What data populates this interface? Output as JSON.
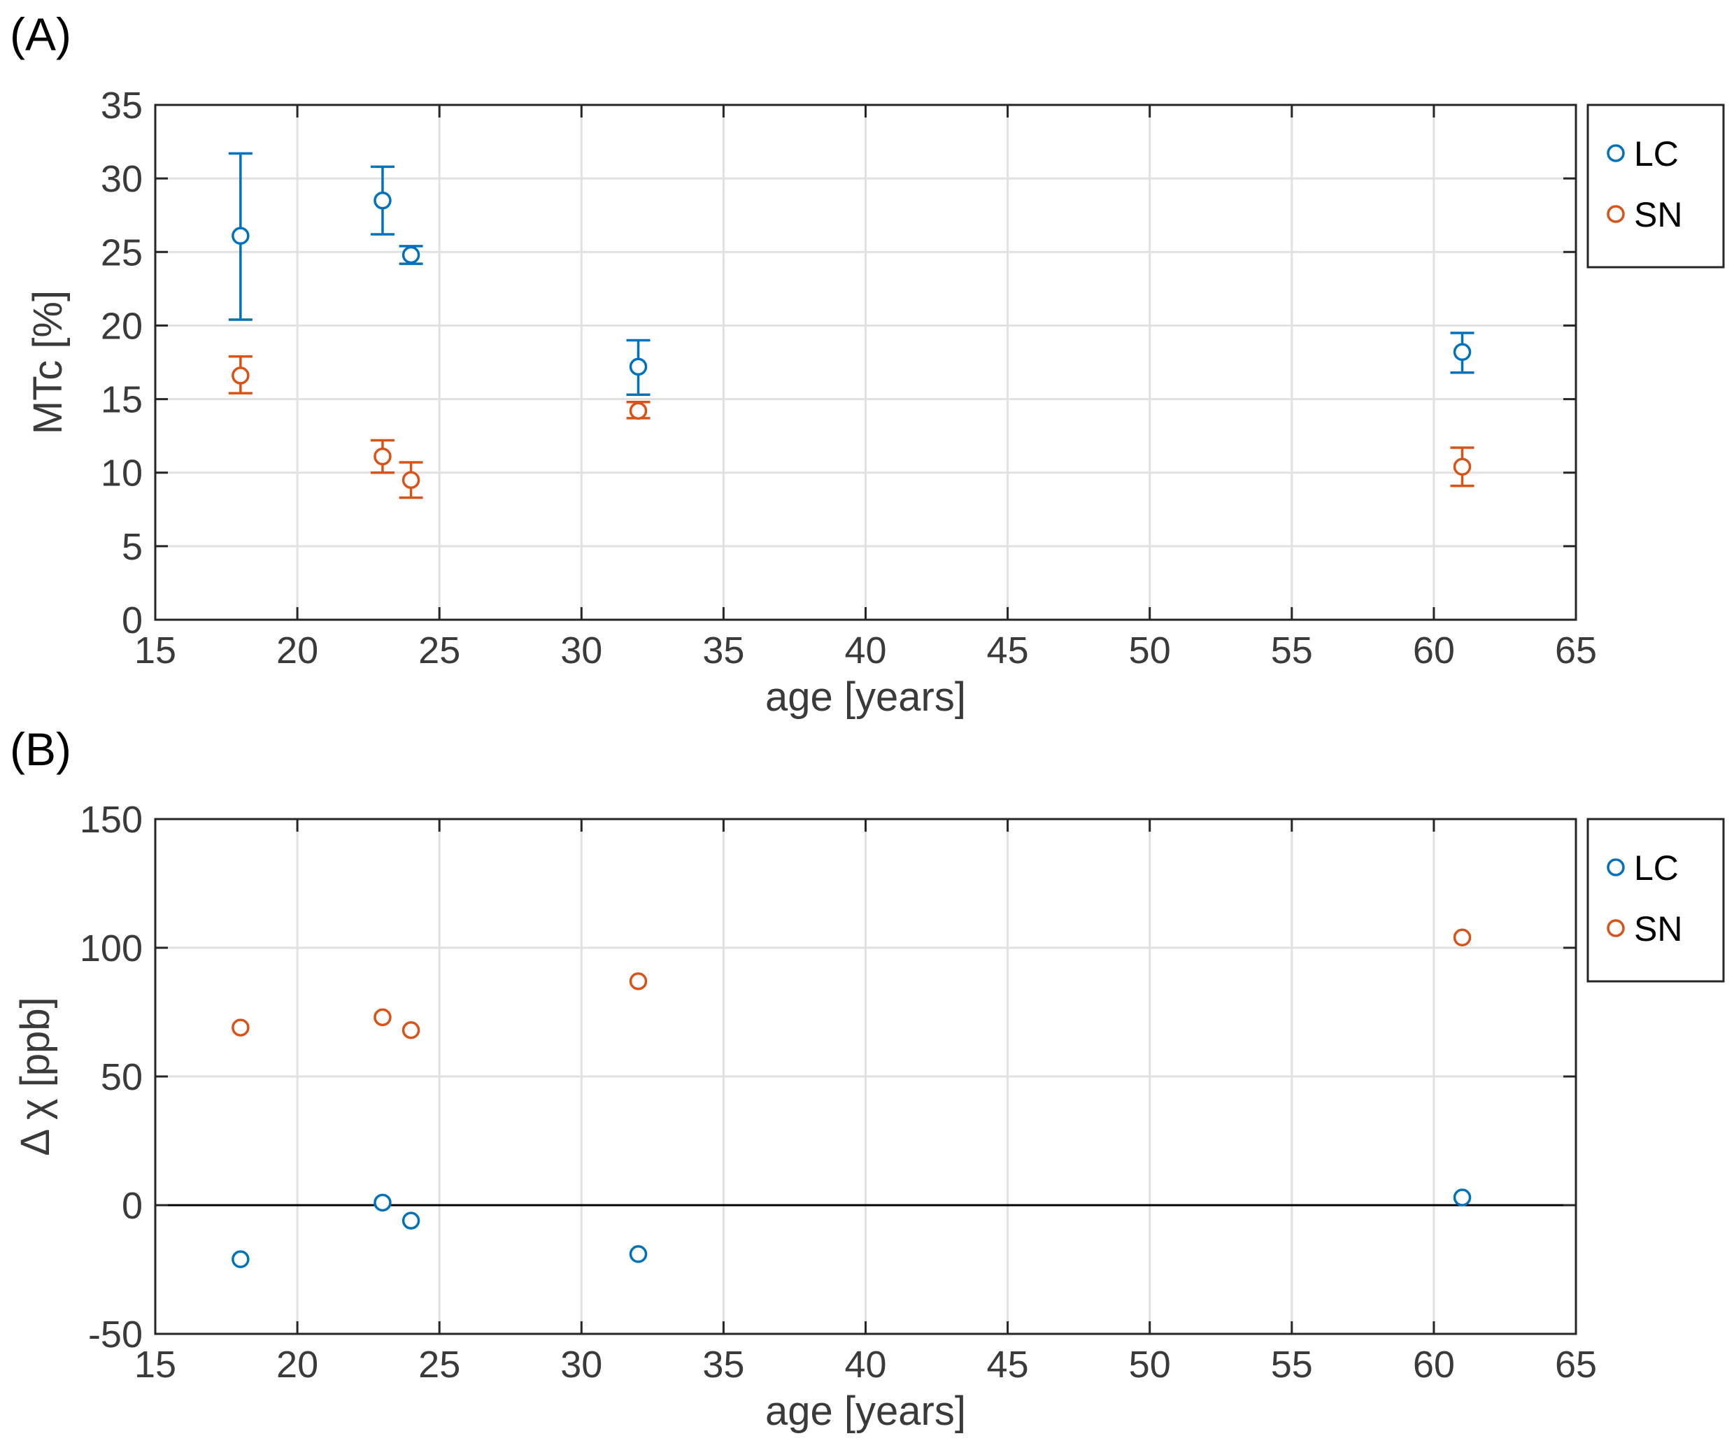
{
  "colors": {
    "lc": "#0072BD",
    "sn": "#D95319",
    "grid": "#e1e1e1",
    "axis": "#262626",
    "zero_line": "#000000"
  },
  "chart_data": [
    {
      "panel_label": "(A)",
      "type": "scatter",
      "error_bars": true,
      "xlabel": "age [years]",
      "ylabel": "MTc [%]",
      "xlim": [
        15,
        65
      ],
      "ylim": [
        0,
        35
      ],
      "x_ticks": [
        "15",
        "20",
        "25",
        "30",
        "35",
        "40",
        "45",
        "50",
        "55",
        "60",
        "65"
      ],
      "y_ticks": [
        "0",
        "5",
        "10",
        "15",
        "20",
        "25",
        "30",
        "35"
      ],
      "grid": true,
      "legend_position": "outside-right-top",
      "series": [
        {
          "name": "LC",
          "color": "#0072BD",
          "points": [
            {
              "x": 18,
              "y": 26.1,
              "low": 20.4,
              "high": 31.7
            },
            {
              "x": 23,
              "y": 28.5,
              "low": 26.2,
              "high": 30.8
            },
            {
              "x": 24,
              "y": 24.8,
              "low": 24.2,
              "high": 25.4
            },
            {
              "x": 32,
              "y": 17.2,
              "low": 15.3,
              "high": 19.0
            },
            {
              "x": 61,
              "y": 18.2,
              "low": 16.8,
              "high": 19.5
            }
          ]
        },
        {
          "name": "SN",
          "color": "#D95319",
          "points": [
            {
              "x": 18,
              "y": 16.6,
              "low": 15.4,
              "high": 17.9
            },
            {
              "x": 23,
              "y": 11.1,
              "low": 10.0,
              "high": 12.2
            },
            {
              "x": 24,
              "y": 9.5,
              "low": 8.3,
              "high": 10.7
            },
            {
              "x": 32,
              "y": 14.2,
              "low": 13.7,
              "high": 14.8
            },
            {
              "x": 61,
              "y": 10.4,
              "low": 9.1,
              "high": 11.7
            }
          ]
        }
      ]
    },
    {
      "panel_label": "(B)",
      "type": "scatter",
      "error_bars": false,
      "xlabel": "age [years]",
      "ylabel": "Δ χ  [ppb]",
      "xlim": [
        15,
        65
      ],
      "ylim": [
        -50,
        150
      ],
      "x_ticks": [
        "15",
        "20",
        "25",
        "30",
        "35",
        "40",
        "45",
        "50",
        "55",
        "60",
        "65"
      ],
      "y_ticks": [
        "-50",
        "0",
        "50",
        "100",
        "150"
      ],
      "grid": true,
      "zero_line": true,
      "legend_position": "outside-right-top",
      "series": [
        {
          "name": "LC",
          "color": "#0072BD",
          "points": [
            {
              "x": 18,
              "y": -21
            },
            {
              "x": 23,
              "y": 1
            },
            {
              "x": 24,
              "y": -6
            },
            {
              "x": 32,
              "y": -19
            },
            {
              "x": 61,
              "y": 3
            }
          ]
        },
        {
          "name": "SN",
          "color": "#D95319",
          "points": [
            {
              "x": 18,
              "y": 69
            },
            {
              "x": 23,
              "y": 73
            },
            {
              "x": 24,
              "y": 68
            },
            {
              "x": 32,
              "y": 87
            },
            {
              "x": 61,
              "y": 104
            }
          ]
        }
      ]
    }
  ]
}
